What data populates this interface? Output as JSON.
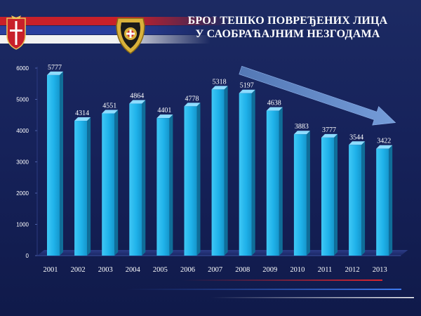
{
  "title": {
    "line1": "БРОЈ ТЕШКО ПОВРЕЂЕНИХ ЛИЦА",
    "line2": "У САОБРАЋАЈНИМ НЕЗГОДАМА"
  },
  "colors": {
    "background": "#16225a",
    "bar": "#1fb2ea",
    "bar_side": "#0f6e99",
    "bar_top": "#8fdcff",
    "arrow": "#5e86c4",
    "label": "#ffffff"
  },
  "chart_data": {
    "type": "bar",
    "title": "БРОЈ ТЕШКО ПОВРЕЂЕНИХ ЛИЦА У САОБРАЋАЈНИМ НЕЗГОДАМА",
    "categories": [
      "2001",
      "2002",
      "2003",
      "2004",
      "2005",
      "2006",
      "2007",
      "2008",
      "2009",
      "2010",
      "2011",
      "2012",
      "2013"
    ],
    "values": [
      5777,
      4314,
      4551,
      4864,
      4401,
      4778,
      5318,
      5197,
      4638,
      3883,
      3777,
      3544,
      3422
    ],
    "value_labels": [
      "5777",
      "4314",
      "4551",
      "4864",
      "4401",
      "4778",
      "5318",
      "5197",
      "4638",
      "3883",
      "3777",
      "3544",
      "3422"
    ],
    "y_ticks": [
      "0",
      "1000",
      "2000",
      "3000",
      "4000",
      "5000",
      "6000"
    ],
    "ylim": [
      0,
      6000
    ],
    "grid": false,
    "legend": "none",
    "annotation": "downward trend arrow from 2008 to 2013"
  }
}
